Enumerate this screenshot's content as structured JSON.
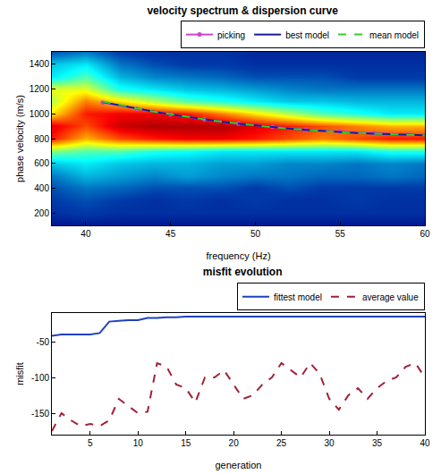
{
  "chart_data": [
    {
      "type": "heatmap",
      "title": "velocity spectrum & dispersion curve",
      "x_label": "frequency (Hz)",
      "y_label": "phase velocity (m/s)",
      "x": [
        38,
        40,
        42,
        44,
        46,
        48,
        50,
        52,
        54,
        56,
        58,
        60
      ],
      "y": [
        100,
        200,
        300,
        400,
        500,
        600,
        700,
        800,
        900,
        1000,
        1100,
        1200,
        1300,
        1400,
        1500
      ],
      "z": [
        [
          0.05,
          0.05,
          0.05,
          0.05,
          0.05,
          0.05,
          0.05,
          0.05,
          0.05,
          0.05,
          0.05,
          0.05
        ],
        [
          0.1,
          0.12,
          0.1,
          0.1,
          0.1,
          0.1,
          0.1,
          0.1,
          0.1,
          0.1,
          0.1,
          0.1
        ],
        [
          0.12,
          0.15,
          0.12,
          0.1,
          0.12,
          0.1,
          0.12,
          0.1,
          0.1,
          0.12,
          0.1,
          0.1
        ],
        [
          0.15,
          0.2,
          0.18,
          0.15,
          0.15,
          0.15,
          0.12,
          0.15,
          0.12,
          0.12,
          0.12,
          0.12
        ],
        [
          0.2,
          0.28,
          0.25,
          0.22,
          0.25,
          0.22,
          0.2,
          0.2,
          0.18,
          0.18,
          0.2,
          0.18
        ],
        [
          0.3,
          0.35,
          0.3,
          0.28,
          0.28,
          0.25,
          0.25,
          0.22,
          0.22,
          0.2,
          0.22,
          0.2
        ],
        [
          0.5,
          0.45,
          0.45,
          0.4,
          0.38,
          0.35,
          0.35,
          0.35,
          0.35,
          0.35,
          0.4,
          0.4
        ],
        [
          0.85,
          0.7,
          0.8,
          0.85,
          0.88,
          0.88,
          0.85,
          0.8,
          0.75,
          0.8,
          0.85,
          0.85
        ],
        [
          0.9,
          0.8,
          0.92,
          0.95,
          0.95,
          0.95,
          0.9,
          0.85,
          0.8,
          0.75,
          0.7,
          0.7
        ],
        [
          0.65,
          0.85,
          0.88,
          0.88,
          0.85,
          0.75,
          0.65,
          0.55,
          0.45,
          0.4,
          0.35,
          0.35
        ],
        [
          0.55,
          0.75,
          0.65,
          0.55,
          0.45,
          0.4,
          0.35,
          0.3,
          0.3,
          0.28,
          0.28,
          0.28
        ],
        [
          0.6,
          0.6,
          0.4,
          0.35,
          0.3,
          0.28,
          0.25,
          0.22,
          0.2,
          0.2,
          0.2,
          0.2
        ],
        [
          0.35,
          0.45,
          0.28,
          0.22,
          0.2,
          0.18,
          0.15,
          0.15,
          0.15,
          0.12,
          0.12,
          0.12
        ],
        [
          0.3,
          0.35,
          0.2,
          0.15,
          0.12,
          0.12,
          0.1,
          0.1,
          0.1,
          0.1,
          0.1,
          0.1
        ],
        [
          0.15,
          0.2,
          0.12,
          0.1,
          0.1,
          0.1,
          0.08,
          0.08,
          0.08,
          0.08,
          0.08,
          0.08
        ]
      ],
      "zlim": [
        0,
        1
      ],
      "series": [
        {
          "name": "picking",
          "type": "scatter",
          "color": "#cc44cc",
          "marker": "circle",
          "line_style": "solid",
          "x": [
            41,
            43,
            45,
            47,
            49,
            51,
            53,
            55,
            57,
            59
          ],
          "values": [
            1090,
            1040,
            995,
            955,
            920,
            895,
            872,
            857,
            845,
            835
          ]
        },
        {
          "name": "best model",
          "type": "line",
          "color": "#1a1a99",
          "line_style": "solid",
          "x": [
            41,
            42,
            43,
            44,
            45,
            46,
            47,
            48,
            49,
            50,
            51,
            52,
            53,
            54,
            55,
            56,
            57,
            58,
            59,
            60
          ],
          "values": [
            1095,
            1068,
            1042,
            1018,
            995,
            974,
            955,
            937,
            921,
            906,
            893,
            881,
            870,
            861,
            853,
            846,
            840,
            835,
            831,
            827
          ]
        },
        {
          "name": "mean model",
          "type": "line",
          "color": "#33cc33",
          "line_style": "dash",
          "x": [
            41,
            42,
            43,
            44,
            45,
            46,
            47,
            48,
            49,
            50,
            51,
            52,
            53,
            54,
            55,
            56,
            57,
            58,
            59,
            60
          ],
          "values": [
            1100,
            1070,
            1044,
            1019,
            996,
            975,
            955,
            937,
            921,
            906,
            892,
            880,
            869,
            860,
            852,
            845,
            839,
            834,
            830,
            826
          ]
        }
      ],
      "xlim": [
        38,
        60
      ],
      "xticks": [
        40,
        45,
        50,
        55,
        60
      ],
      "ylim": [
        100,
        1500
      ],
      "yticks": [
        200,
        400,
        600,
        800,
        1000,
        1200,
        1400
      ],
      "grid": false,
      "legend": "top"
    },
    {
      "type": "line",
      "title": "misfit evolution",
      "x_label": "generation",
      "y_label": "misfit",
      "x": [
        1,
        2,
        3,
        4,
        5,
        6,
        7,
        8,
        9,
        10,
        11,
        12,
        13,
        14,
        15,
        16,
        17,
        18,
        19,
        20,
        21,
        22,
        23,
        24,
        25,
        26,
        27,
        28,
        29,
        30,
        31,
        32,
        33,
        34,
        35,
        36,
        37,
        38,
        39,
        40
      ],
      "series": [
        {
          "name": "fittest model",
          "color": "#2040c0",
          "line_style": "solid",
          "values": [
            -42,
            -40,
            -40,
            -40,
            -40,
            -38,
            -22,
            -21,
            -20,
            -20,
            -17,
            -17,
            -16,
            -16,
            -15,
            -15,
            -15,
            -15,
            -15,
            -15,
            -15,
            -15,
            -15,
            -15,
            -15,
            -15,
            -15,
            -15,
            -15,
            -15,
            -15,
            -15,
            -15,
            -15,
            -15,
            -15,
            -15,
            -15,
            -15,
            -15
          ]
        },
        {
          "name": "average value",
          "color": "#a0203a",
          "line_style": "dash",
          "values": [
            -175,
            -150,
            -160,
            -168,
            -165,
            -168,
            -160,
            -130,
            -140,
            -150,
            -148,
            -80,
            -85,
            -110,
            -115,
            -135,
            -100,
            -100,
            -90,
            -110,
            -130,
            -125,
            -110,
            -100,
            -80,
            -90,
            -100,
            -80,
            -95,
            -130,
            -145,
            -125,
            -115,
            -130,
            -115,
            -105,
            -100,
            -85,
            -80,
            -100
          ]
        }
      ],
      "xlim": [
        1,
        40
      ],
      "xticks": [
        5,
        10,
        15,
        20,
        25,
        30,
        35,
        40
      ],
      "ylim": [
        -180,
        -10
      ],
      "yticks": [
        -150,
        -100,
        -50
      ],
      "grid": false,
      "legend": "top"
    }
  ]
}
